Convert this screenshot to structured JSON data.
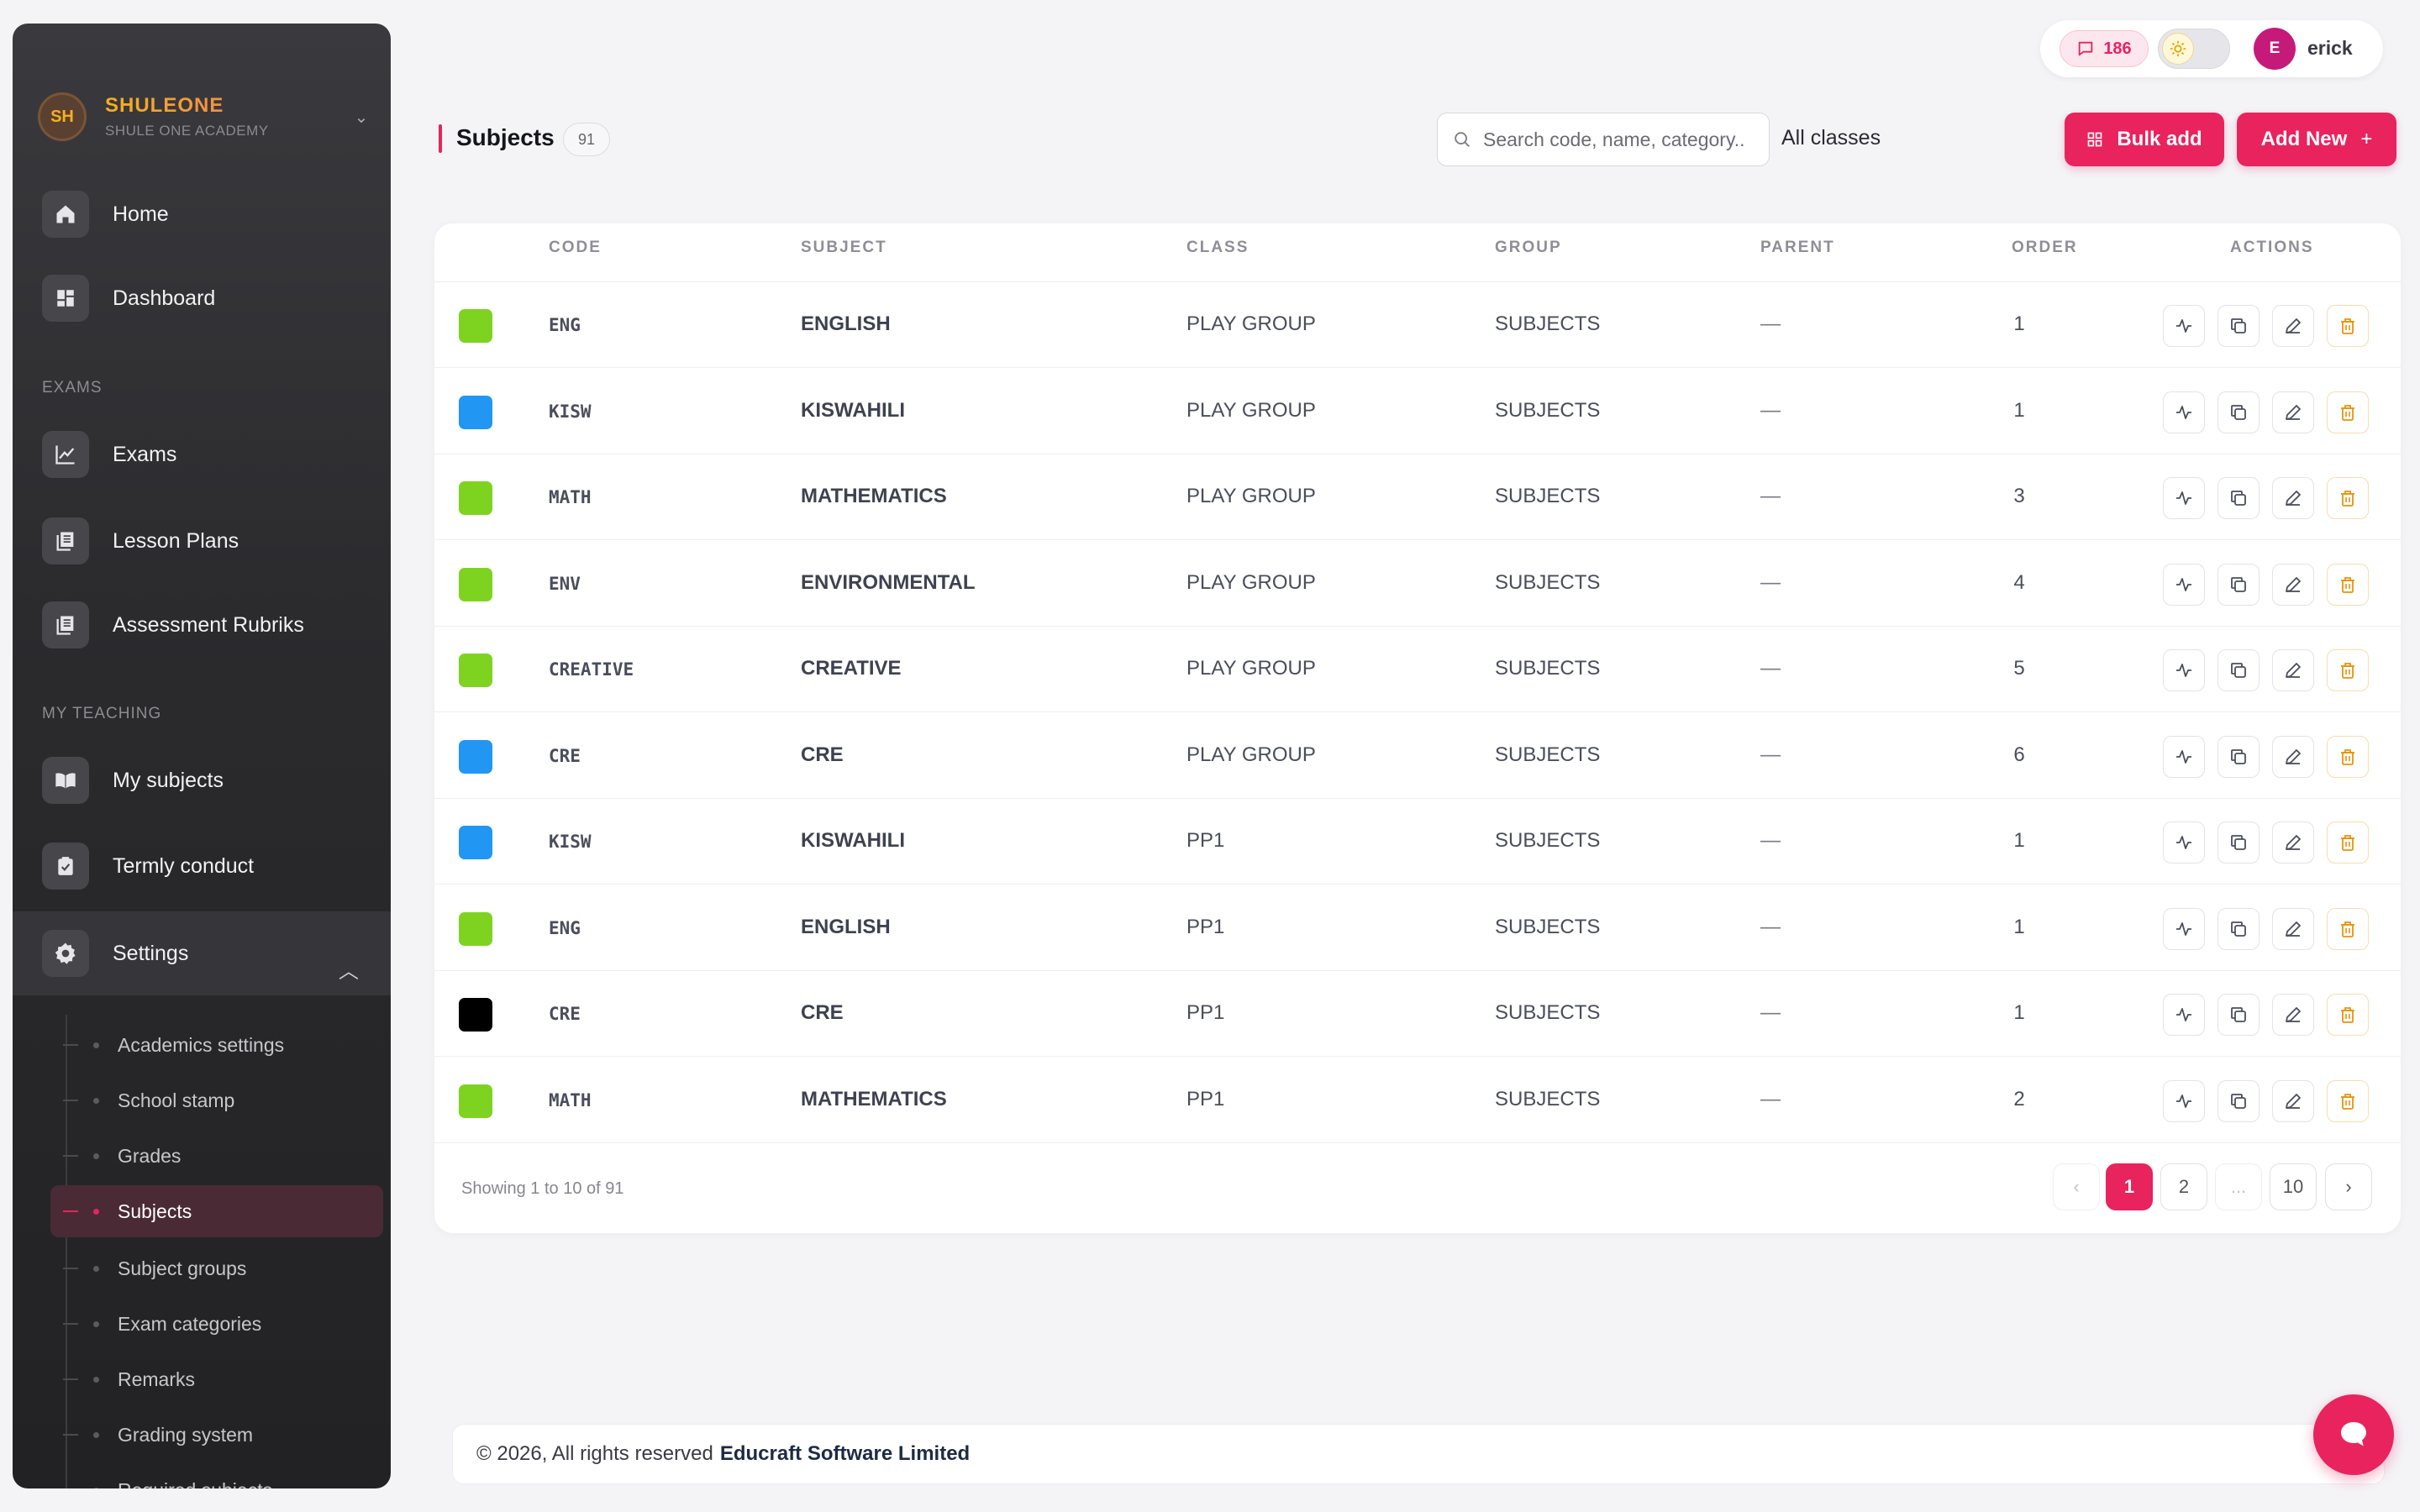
{
  "brand": {
    "initials": "SH",
    "name": "SHULEONE",
    "subtitle": "SHULE ONE ACADEMY"
  },
  "sidebar": {
    "top_items": [
      {
        "label": "Home",
        "icon": "home-icon"
      },
      {
        "label": "Dashboard",
        "icon": "dashboard-icon"
      }
    ],
    "sections": {
      "exams": "EXAMS",
      "teaching": "MY TEACHING"
    },
    "exam_items": [
      {
        "label": "Exams",
        "icon": "chart-icon"
      },
      {
        "label": "Lesson Plans",
        "icon": "book-stack-icon"
      },
      {
        "label": "Assessment Rubriks",
        "icon": "book-stack-icon"
      }
    ],
    "teaching_items": [
      {
        "label": "My subjects",
        "icon": "open-book-icon"
      },
      {
        "label": "Termly conduct",
        "icon": "clipboard-check-icon"
      }
    ],
    "settings": {
      "label": "Settings",
      "icon": "gear-icon",
      "expanded": true
    },
    "settings_items": [
      {
        "label": "Academics settings"
      },
      {
        "label": "School stamp"
      },
      {
        "label": "Grades"
      },
      {
        "label": "Subjects",
        "active": true
      },
      {
        "label": "Subject groups"
      },
      {
        "label": "Exam categories"
      },
      {
        "label": "Remarks"
      },
      {
        "label": "Grading system"
      },
      {
        "label": "Required subjects"
      }
    ]
  },
  "topbar": {
    "messages_count": "186",
    "theme": "light",
    "user_initial": "E",
    "user_name": "erick"
  },
  "header": {
    "title": "Subjects",
    "count": "91",
    "search_placeholder": "Search code, name, category..",
    "class_filter": "All classes",
    "bulk_add_label": "Bulk add",
    "add_new_label": "Add New"
  },
  "table": {
    "columns": [
      "CODE",
      "SUBJECT",
      "CLASS",
      "GROUP",
      "PARENT",
      "ORDER",
      "ACTIONS"
    ],
    "rows": [
      {
        "color": "#7ed321",
        "code": "ENG",
        "subject": "ENGLISH",
        "class": "PLAY GROUP",
        "group": "SUBJECTS",
        "parent": "—",
        "order": "1"
      },
      {
        "color": "#2196f3",
        "code": "KISW",
        "subject": "KISWAHILI",
        "class": "PLAY GROUP",
        "group": "SUBJECTS",
        "parent": "—",
        "order": "1"
      },
      {
        "color": "#7ed321",
        "code": "MATH",
        "subject": "MATHEMATICS",
        "class": "PLAY GROUP",
        "group": "SUBJECTS",
        "parent": "—",
        "order": "3"
      },
      {
        "color": "#7ed321",
        "code": "ENV",
        "subject": "ENVIRONMENTAL",
        "class": "PLAY GROUP",
        "group": "SUBJECTS",
        "parent": "—",
        "order": "4"
      },
      {
        "color": "#7ed321",
        "code": "CREATIVE",
        "subject": "CREATIVE",
        "class": "PLAY GROUP",
        "group": "SUBJECTS",
        "parent": "—",
        "order": "5"
      },
      {
        "color": "#2196f3",
        "code": "CRE",
        "subject": "CRE",
        "class": "PLAY GROUP",
        "group": "SUBJECTS",
        "parent": "—",
        "order": "6"
      },
      {
        "color": "#2196f3",
        "code": "KISW",
        "subject": "KISWAHILI",
        "class": "PP1",
        "group": "SUBJECTS",
        "parent": "—",
        "order": "1"
      },
      {
        "color": "#7ed321",
        "code": "ENG",
        "subject": "ENGLISH",
        "class": "PP1",
        "group": "SUBJECTS",
        "parent": "—",
        "order": "1"
      },
      {
        "color": "#000000",
        "code": "CRE",
        "subject": "CRE",
        "class": "PP1",
        "group": "SUBJECTS",
        "parent": "—",
        "order": "1"
      },
      {
        "color": "#7ed321",
        "code": "MATH",
        "subject": "MATHEMATICS",
        "class": "PP1",
        "group": "SUBJECTS",
        "parent": "—",
        "order": "2"
      }
    ],
    "row_actions": [
      "activity-icon",
      "copy-icon",
      "edit-icon",
      "trash-icon"
    ]
  },
  "pagination": {
    "summary": "Showing 1 to 10 of 91",
    "prev": "‹",
    "pages": [
      "1",
      "2",
      "...",
      "10"
    ],
    "current": "1",
    "next": "›"
  },
  "footer": {
    "copyright": "© 2026, All rights reserved",
    "company": "Educraft Software Limited"
  },
  "colors": {
    "accent": "#e8235e",
    "sidebar_bg": "#2b2b2e"
  }
}
